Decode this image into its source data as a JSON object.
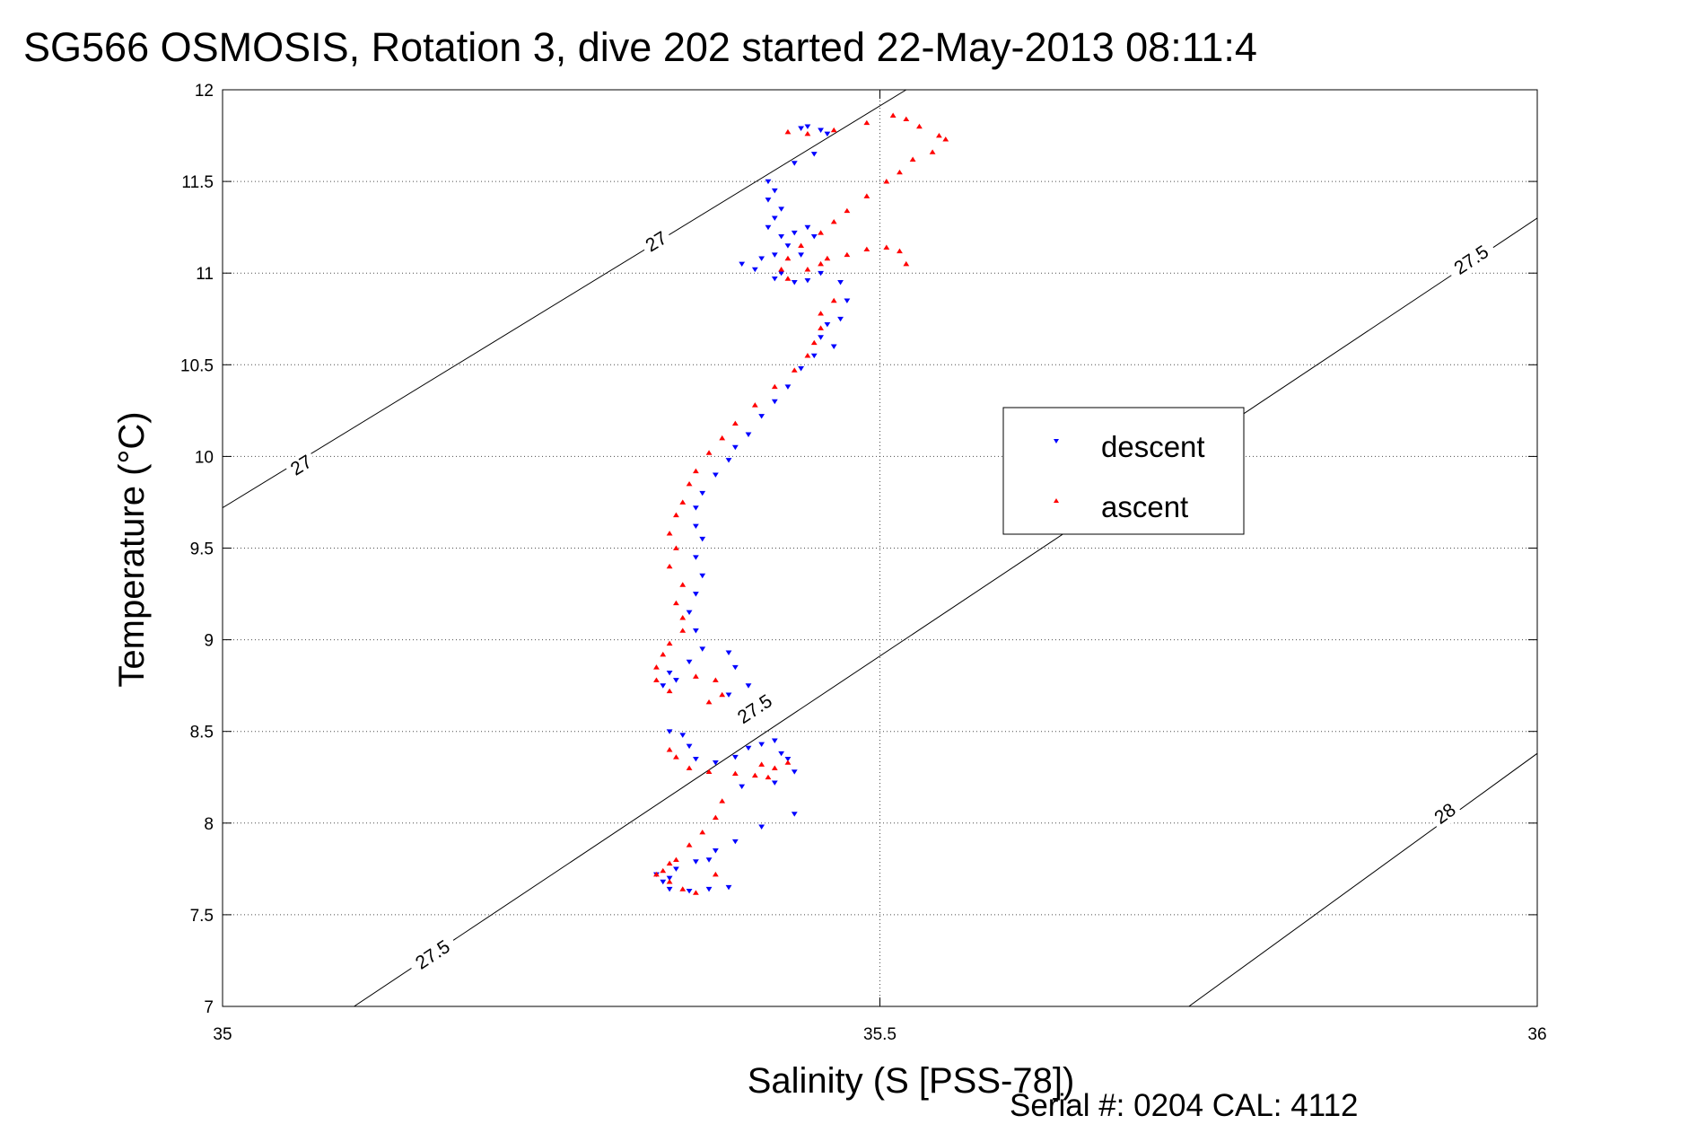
{
  "chart_data": {
    "type": "scatter",
    "title": "SG566 OSMOSIS, Rotation 3, dive 202 started 22-May-2013 08:11:4",
    "xlabel": "Salinity (S [PSS-78])",
    "ylabel": "Temperature (°C)",
    "xlim": [
      35,
      36
    ],
    "ylim": [
      7,
      12
    ],
    "x_ticks": [
      35,
      35.5,
      36
    ],
    "x_tick_labels": [
      "35",
      "35.5",
      "36"
    ],
    "y_ticks": [
      7,
      7.5,
      8,
      8.5,
      9,
      9.5,
      10,
      10.5,
      11,
      11.5,
      12
    ],
    "y_tick_labels": [
      "7",
      "7.5",
      "8",
      "8.5",
      "9",
      "9.5",
      "10",
      "10.5",
      "11",
      "11.5",
      "12"
    ],
    "grid": true,
    "legend_position": "right",
    "footer": "Serial #: 0204  CAL: 4112",
    "density_contours": [
      {
        "label": "27",
        "points": [
          [
            35.0,
            9.72
          ],
          [
            35.52,
            12.0
          ]
        ],
        "label_positions": [
          [
            35.06,
            9.95
          ],
          [
            35.33,
            11.17
          ]
        ]
      },
      {
        "label": "27.5",
        "points": [
          [
            35.1,
            7.0
          ],
          [
            36.0,
            11.3
          ]
        ],
        "label_positions": [
          [
            35.16,
            7.28
          ],
          [
            35.405,
            8.62
          ],
          [
            35.95,
            11.07
          ]
        ]
      },
      {
        "label": "28",
        "points": [
          [
            35.735,
            7.0
          ],
          [
            36.0,
            8.38
          ]
        ],
        "label_positions": [
          [
            35.93,
            8.05
          ]
        ]
      }
    ],
    "series": [
      {
        "name": "descent",
        "color": "#0000ff",
        "marker": "triangle-down",
        "points": [
          [
            35.445,
            11.8
          ],
          [
            35.44,
            11.79
          ],
          [
            35.455,
            11.78
          ],
          [
            35.46,
            11.76
          ],
          [
            35.45,
            11.65
          ],
          [
            35.435,
            11.6
          ],
          [
            35.415,
            11.5
          ],
          [
            35.42,
            11.45
          ],
          [
            35.415,
            11.4
          ],
          [
            35.425,
            11.35
          ],
          [
            35.42,
            11.3
          ],
          [
            35.415,
            11.25
          ],
          [
            35.425,
            11.2
          ],
          [
            35.43,
            11.15
          ],
          [
            35.42,
            11.1
          ],
          [
            35.41,
            11.08
          ],
          [
            35.395,
            11.05
          ],
          [
            35.405,
            11.02
          ],
          [
            35.435,
            11.22
          ],
          [
            35.445,
            11.25
          ],
          [
            35.45,
            11.2
          ],
          [
            35.44,
            11.1
          ],
          [
            35.425,
            11.0
          ],
          [
            35.42,
            10.97
          ],
          [
            35.435,
            10.95
          ],
          [
            35.445,
            10.96
          ],
          [
            35.455,
            11.0
          ],
          [
            35.47,
            10.95
          ],
          [
            35.475,
            10.85
          ],
          [
            35.47,
            10.75
          ],
          [
            35.46,
            10.72
          ],
          [
            35.455,
            10.65
          ],
          [
            35.465,
            10.6
          ],
          [
            35.45,
            10.55
          ],
          [
            35.44,
            10.48
          ],
          [
            35.43,
            10.38
          ],
          [
            35.42,
            10.3
          ],
          [
            35.41,
            10.22
          ],
          [
            35.4,
            10.12
          ],
          [
            35.39,
            10.05
          ],
          [
            35.385,
            9.98
          ],
          [
            35.375,
            9.9
          ],
          [
            35.365,
            9.8
          ],
          [
            35.36,
            9.72
          ],
          [
            35.36,
            9.62
          ],
          [
            35.365,
            9.55
          ],
          [
            35.36,
            9.45
          ],
          [
            35.365,
            9.35
          ],
          [
            35.36,
            9.25
          ],
          [
            35.355,
            9.15
          ],
          [
            35.36,
            9.05
          ],
          [
            35.365,
            8.95
          ],
          [
            35.355,
            8.88
          ],
          [
            35.34,
            8.82
          ],
          [
            35.335,
            8.75
          ],
          [
            35.345,
            8.78
          ],
          [
            35.385,
            8.93
          ],
          [
            35.39,
            8.85
          ],
          [
            35.4,
            8.75
          ],
          [
            35.385,
            8.7
          ],
          [
            35.34,
            8.5
          ],
          [
            35.35,
            8.48
          ],
          [
            35.355,
            8.42
          ],
          [
            35.36,
            8.35
          ],
          [
            35.375,
            8.33
          ],
          [
            35.39,
            8.36
          ],
          [
            35.4,
            8.41
          ],
          [
            35.41,
            8.43
          ],
          [
            35.42,
            8.45
          ],
          [
            35.425,
            8.38
          ],
          [
            35.43,
            8.35
          ],
          [
            35.435,
            8.28
          ],
          [
            35.42,
            8.22
          ],
          [
            35.395,
            8.2
          ],
          [
            35.435,
            8.05
          ],
          [
            35.41,
            7.98
          ],
          [
            35.39,
            7.9
          ],
          [
            35.375,
            7.85
          ],
          [
            35.37,
            7.8
          ],
          [
            35.36,
            7.79
          ],
          [
            35.345,
            7.75
          ],
          [
            35.34,
            7.7
          ],
          [
            35.335,
            7.68
          ],
          [
            35.34,
            7.64
          ],
          [
            35.355,
            7.63
          ],
          [
            35.37,
            7.64
          ],
          [
            35.385,
            7.65
          ],
          [
            35.33,
            7.72
          ]
        ]
      },
      {
        "name": "ascent",
        "color": "#ff0000",
        "marker": "triangle-up",
        "points": [
          [
            35.43,
            11.77
          ],
          [
            35.445,
            11.76
          ],
          [
            35.465,
            11.78
          ],
          [
            35.49,
            11.82
          ],
          [
            35.51,
            11.86
          ],
          [
            35.52,
            11.84
          ],
          [
            35.53,
            11.8
          ],
          [
            35.545,
            11.75
          ],
          [
            35.55,
            11.73
          ],
          [
            35.54,
            11.66
          ],
          [
            35.525,
            11.62
          ],
          [
            35.515,
            11.55
          ],
          [
            35.505,
            11.5
          ],
          [
            35.49,
            11.42
          ],
          [
            35.475,
            11.34
          ],
          [
            35.465,
            11.28
          ],
          [
            35.455,
            11.22
          ],
          [
            35.44,
            11.15
          ],
          [
            35.43,
            11.08
          ],
          [
            35.425,
            11.02
          ],
          [
            35.43,
            10.97
          ],
          [
            35.445,
            11.02
          ],
          [
            35.455,
            11.05
          ],
          [
            35.46,
            11.08
          ],
          [
            35.475,
            11.1
          ],
          [
            35.49,
            11.13
          ],
          [
            35.505,
            11.14
          ],
          [
            35.515,
            11.12
          ],
          [
            35.52,
            11.05
          ],
          [
            35.465,
            10.85
          ],
          [
            35.455,
            10.78
          ],
          [
            35.455,
            10.7
          ],
          [
            35.45,
            10.62
          ],
          [
            35.445,
            10.55
          ],
          [
            35.435,
            10.47
          ],
          [
            35.42,
            10.38
          ],
          [
            35.405,
            10.28
          ],
          [
            35.39,
            10.18
          ],
          [
            35.38,
            10.1
          ],
          [
            35.37,
            10.02
          ],
          [
            35.36,
            9.92
          ],
          [
            35.355,
            9.85
          ],
          [
            35.35,
            9.75
          ],
          [
            35.345,
            9.68
          ],
          [
            35.34,
            9.58
          ],
          [
            35.345,
            9.5
          ],
          [
            35.34,
            9.4
          ],
          [
            35.35,
            9.3
          ],
          [
            35.345,
            9.2
          ],
          [
            35.35,
            9.12
          ],
          [
            35.35,
            9.05
          ],
          [
            35.34,
            8.98
          ],
          [
            35.335,
            8.92
          ],
          [
            35.33,
            8.85
          ],
          [
            35.33,
            8.78
          ],
          [
            35.34,
            8.72
          ],
          [
            35.36,
            8.8
          ],
          [
            35.375,
            8.78
          ],
          [
            35.38,
            8.7
          ],
          [
            35.37,
            8.66
          ],
          [
            35.34,
            8.4
          ],
          [
            35.345,
            8.36
          ],
          [
            35.355,
            8.3
          ],
          [
            35.37,
            8.28
          ],
          [
            35.39,
            8.27
          ],
          [
            35.405,
            8.26
          ],
          [
            35.415,
            8.25
          ],
          [
            35.42,
            8.3
          ],
          [
            35.43,
            8.33
          ],
          [
            35.41,
            8.32
          ],
          [
            35.38,
            8.12
          ],
          [
            35.375,
            8.03
          ],
          [
            35.365,
            7.95
          ],
          [
            35.355,
            7.88
          ],
          [
            35.345,
            7.8
          ],
          [
            35.34,
            7.78
          ],
          [
            35.335,
            7.74
          ],
          [
            35.33,
            7.72
          ],
          [
            35.34,
            7.68
          ],
          [
            35.35,
            7.64
          ],
          [
            35.36,
            7.62
          ],
          [
            35.375,
            7.72
          ]
        ]
      }
    ]
  }
}
